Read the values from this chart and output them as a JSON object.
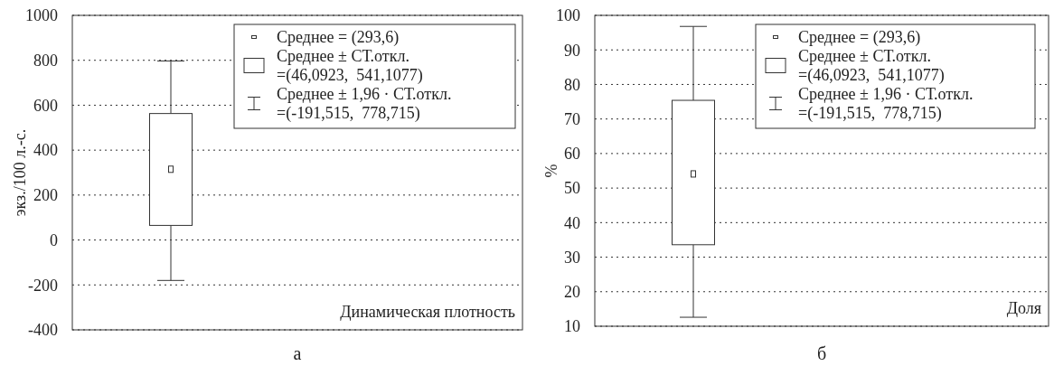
{
  "chart_data": [
    {
      "type": "box",
      "title": "а",
      "ylabel": "экз./100 л.-с.",
      "categories": [
        null
      ],
      "boxes": [
        {
          "low": -180,
          "q1": 65,
          "median": 315,
          "q3": 563,
          "high": 797
        }
      ],
      "ylim": [
        -400,
        1000
      ],
      "yticks": [
        -400,
        -200,
        0,
        200,
        400,
        600,
        800,
        1000
      ],
      "grid": "y",
      "annotations": [
        "Среднее = (293,6)",
        "Среднее ± СТ.откл.\n=(46,0923,  541,1077)",
        "Среднее ± 1,96 · СТ.откл.\n=(-191,515,  778,715)",
        "Динамическая плотность"
      ]
    },
    {
      "type": "box",
      "title": "б",
      "ylabel": "%",
      "categories": [
        null
      ],
      "boxes": [
        {
          "low": 12.6,
          "q1": 33.6,
          "median": 54.1,
          "q3": 75.4,
          "high": 96.8
        }
      ],
      "ylim": [
        10,
        100
      ],
      "yticks": [
        10,
        20,
        30,
        40,
        50,
        60,
        70,
        80,
        90,
        100
      ],
      "grid": "y",
      "annotations": [
        "Среднее = (293,6)",
        "Среднее ± СТ.откл.\n=(46,0923,  541,1077)",
        "Среднее ± 1,96 · СТ.откл.\n=(-191,515,  778,715)",
        "Доля"
      ]
    }
  ]
}
